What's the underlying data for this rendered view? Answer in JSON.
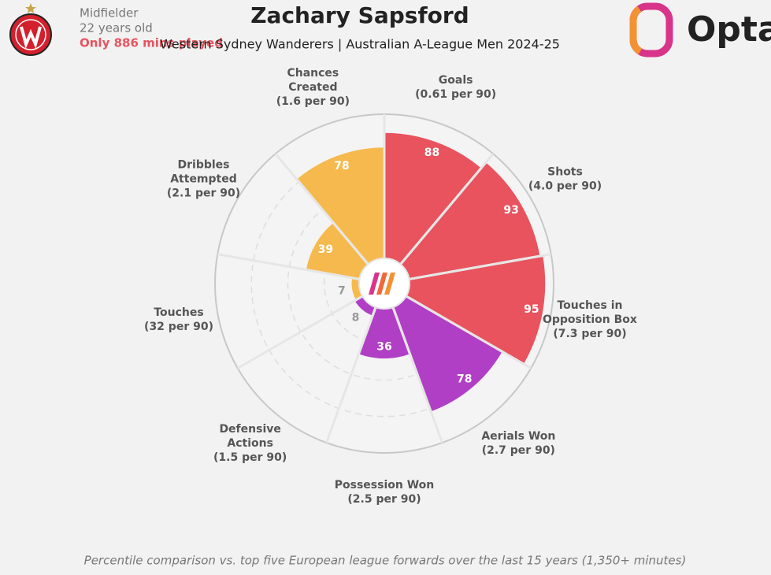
{
  "chart_data": {
    "type": "pizza",
    "title": "Zachary Sapsford",
    "subtitle": "Western Sydney Wanderers | Australian A-League Men 2024-25",
    "player_info": [
      "Midfielder",
      "22 years old"
    ],
    "minutes_note": "Only 886 mins played",
    "brand": "Opta",
    "caption": "Percentile comparison vs. top five European league forwards over the last 15 years (1,350+ minutes)",
    "categories": [
      "Goals",
      "Shots",
      "Touches in Opposition Box",
      "Aerials Won",
      "Possession Won",
      "Defensive Actions",
      "Touches",
      "Dribbles Attempted",
      "Chances Created"
    ],
    "per_90": [
      "(0.61 per 90)",
      "(4.0 per 90)",
      "(7.3 per 90)",
      "(2.7 per 90)",
      "(2.5 per 90)",
      "(1.5 per 90)",
      "(32 per 90)",
      "(2.1 per 90)",
      "(1.6 per 90)"
    ],
    "values": [
      88,
      93,
      95,
      78,
      36,
      8,
      7,
      39,
      78
    ],
    "colors": [
      "#e8535e",
      "#e8535e",
      "#e8535e",
      "#b13fc6",
      "#b13fc6",
      "#b13fc6",
      "#f6b94d",
      "#f6b94d",
      "#f6b94d"
    ],
    "ylim": [
      0,
      100
    ],
    "grid_rings": [
      25,
      50,
      75
    ]
  }
}
